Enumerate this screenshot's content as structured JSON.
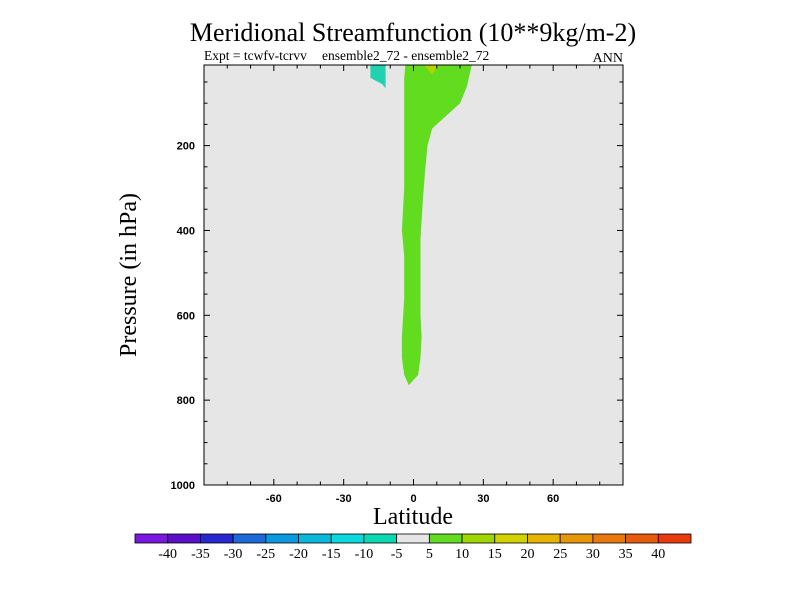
{
  "chart_data": {
    "type": "contour",
    "title": "Meridional Streamfunction (10**9kg/m-2)",
    "subtitle_left": "Expt = tcwfv-tcrvv",
    "subtitle_center": "ensemble2_72 - ensemble2_72",
    "subtitle_right": "ANN",
    "xlabel": "Latitude",
    "ylabel": "Pressure (in hPa)",
    "xlim": [
      -90,
      90
    ],
    "ylim": [
      1000,
      10
    ],
    "xticks": [
      -60,
      -30,
      0,
      30,
      60
    ],
    "xtick_labels": [
      "-60",
      "-30",
      "0",
      "30",
      "60"
    ],
    "yticks": [
      200,
      400,
      600,
      800,
      1000
    ],
    "ytick_labels": [
      "200",
      "400",
      "600",
      "800",
      "1000"
    ],
    "plot_background": "#e6e6e6",
    "regions": [
      {
        "name": "positive-5-10",
        "color": "#62dc1e",
        "points": [
          [
            -3.5,
            10
          ],
          [
            25,
            10
          ],
          [
            23,
            60
          ],
          [
            20,
            100
          ],
          [
            14,
            130
          ],
          [
            8,
            160
          ],
          [
            6,
            200
          ],
          [
            5,
            260
          ],
          [
            4,
            330
          ],
          [
            3,
            420
          ],
          [
            3,
            500
          ],
          [
            3,
            560
          ],
          [
            3,
            600
          ],
          [
            3.5,
            650
          ],
          [
            3,
            700
          ],
          [
            2,
            740
          ],
          [
            -2,
            765
          ],
          [
            -4,
            740
          ],
          [
            -5,
            700
          ],
          [
            -5,
            650
          ],
          [
            -4,
            560
          ],
          [
            -4,
            460
          ],
          [
            -5,
            400
          ],
          [
            -4,
            300
          ],
          [
            -4,
            200
          ],
          [
            -4,
            100
          ],
          [
            -4,
            40
          ]
        ]
      },
      {
        "name": "negative-10-5",
        "color": "#20d2b0",
        "points": [
          [
            -18.5,
            10
          ],
          [
            -12,
            10
          ],
          [
            -12,
            65
          ],
          [
            -13.5,
            55
          ],
          [
            -17,
            45
          ],
          [
            -18.5,
            40
          ]
        ]
      },
      {
        "name": "positive-15-20",
        "color": "#b8d200",
        "points": [
          [
            4.5,
            10
          ],
          [
            11,
            10
          ],
          [
            8,
            32
          ]
        ]
      }
    ],
    "colorbar": {
      "colors": [
        "#7a18e0",
        "#5a10c8",
        "#2828d0",
        "#1c6ad8",
        "#0b98de",
        "#0ab8dc",
        "#0ad8dc",
        "#0ad8b0",
        "#e6e6e6",
        "#62dc1e",
        "#a0d600",
        "#d2d200",
        "#e6b400",
        "#e8960a",
        "#e8780c",
        "#e85a0c",
        "#e83a0c"
      ],
      "labels": [
        "-40",
        "-35",
        "-30",
        "-25",
        "-20",
        "-15",
        "-10",
        "-5",
        "5",
        "10",
        "15",
        "20",
        "25",
        "30",
        "35",
        "40"
      ]
    }
  }
}
